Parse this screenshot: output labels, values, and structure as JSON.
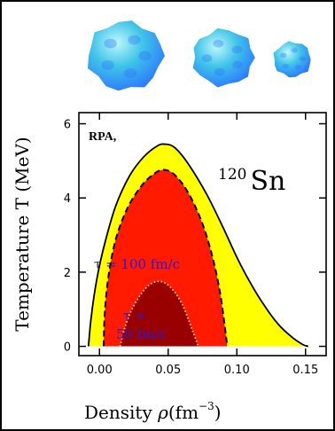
{
  "colors": {
    "outer_region": "#ffff00",
    "middle_region": "#ff1a00",
    "inner_region": "#990000",
    "outline": "#000000",
    "region_label_text": "#2a1ad6",
    "inner_outline": "#f4e4a0",
    "blob_light": "#bdf7fb",
    "blob_mid": "#3fc4e8",
    "blob_dark": "#2a70ff",
    "frame": "#000000"
  },
  "decorations": {
    "nuclei_icons": [
      "fragmenting-nucleus-large-icon",
      "fragmenting-nucleus-medium-icon",
      "fragmenting-nucleus-small-icon"
    ]
  },
  "chart_data": {
    "type": "area",
    "panel_label": "RPA,",
    "nucleus": {
      "mass_number": "120",
      "symbol": "Sn"
    },
    "xlabel": {
      "prefix": "Density ",
      "rho": "ρ",
      "open": "(fm",
      "exp": "−3",
      "close": ")"
    },
    "ylabel": "Temperature T (MeV)",
    "xlim": [
      -0.015,
      0.165
    ],
    "ylim": [
      -0.25,
      6.3
    ],
    "xticks": [
      {
        "value": 0.0,
        "label": "0.00"
      },
      {
        "value": 0.05,
        "label": "0.05"
      },
      {
        "value": 0.1,
        "label": "0.10"
      },
      {
        "value": 0.15,
        "label": "0.15"
      }
    ],
    "yticks": [
      {
        "value": 0,
        "label": "0"
      },
      {
        "value": 2,
        "label": "2"
      },
      {
        "value": 4,
        "label": "4"
      },
      {
        "value": 6,
        "label": "6"
      }
    ],
    "regions": [
      {
        "id": "outer",
        "label": "",
        "boundary": "solid",
        "points": [
          [
            -0.008,
            0
          ],
          [
            -0.006,
            0.8
          ],
          [
            -0.002,
            1.8
          ],
          [
            0.004,
            2.8
          ],
          [
            0.012,
            3.8
          ],
          [
            0.022,
            4.6
          ],
          [
            0.032,
            5.1
          ],
          [
            0.042,
            5.4
          ],
          [
            0.048,
            5.45
          ],
          [
            0.055,
            5.35
          ],
          [
            0.065,
            4.9
          ],
          [
            0.078,
            4.1
          ],
          [
            0.09,
            3.2
          ],
          [
            0.1,
            2.4
          ],
          [
            0.11,
            1.7
          ],
          [
            0.12,
            1.1
          ],
          [
            0.13,
            0.6
          ],
          [
            0.14,
            0.25
          ],
          [
            0.148,
            0.05
          ],
          [
            0.152,
            0
          ]
        ]
      },
      {
        "id": "tau100",
        "label": "τ = 100 fm/c",
        "boundary": "dashed",
        "points": [
          [
            0.003,
            0
          ],
          [
            0.004,
            1.0
          ],
          [
            0.007,
            2.0
          ],
          [
            0.012,
            2.9
          ],
          [
            0.02,
            3.7
          ],
          [
            0.03,
            4.3
          ],
          [
            0.038,
            4.6
          ],
          [
            0.045,
            4.75
          ],
          [
            0.052,
            4.7
          ],
          [
            0.06,
            4.4
          ],
          [
            0.068,
            3.9
          ],
          [
            0.076,
            3.2
          ],
          [
            0.083,
            2.3
          ],
          [
            0.088,
            1.4
          ],
          [
            0.091,
            0.6
          ],
          [
            0.093,
            0
          ]
        ]
      },
      {
        "id": "tau50",
        "label_line1": "τ =",
        "label_line2": "50 fm/c",
        "boundary": "dotted",
        "points": [
          [
            0.015,
            0
          ],
          [
            0.018,
            0.45
          ],
          [
            0.023,
            0.95
          ],
          [
            0.03,
            1.4
          ],
          [
            0.036,
            1.65
          ],
          [
            0.042,
            1.75
          ],
          [
            0.048,
            1.7
          ],
          [
            0.054,
            1.5
          ],
          [
            0.06,
            1.15
          ],
          [
            0.065,
            0.7
          ],
          [
            0.069,
            0.3
          ],
          [
            0.072,
            0
          ]
        ]
      }
    ],
    "grid": false,
    "legend": "none"
  }
}
